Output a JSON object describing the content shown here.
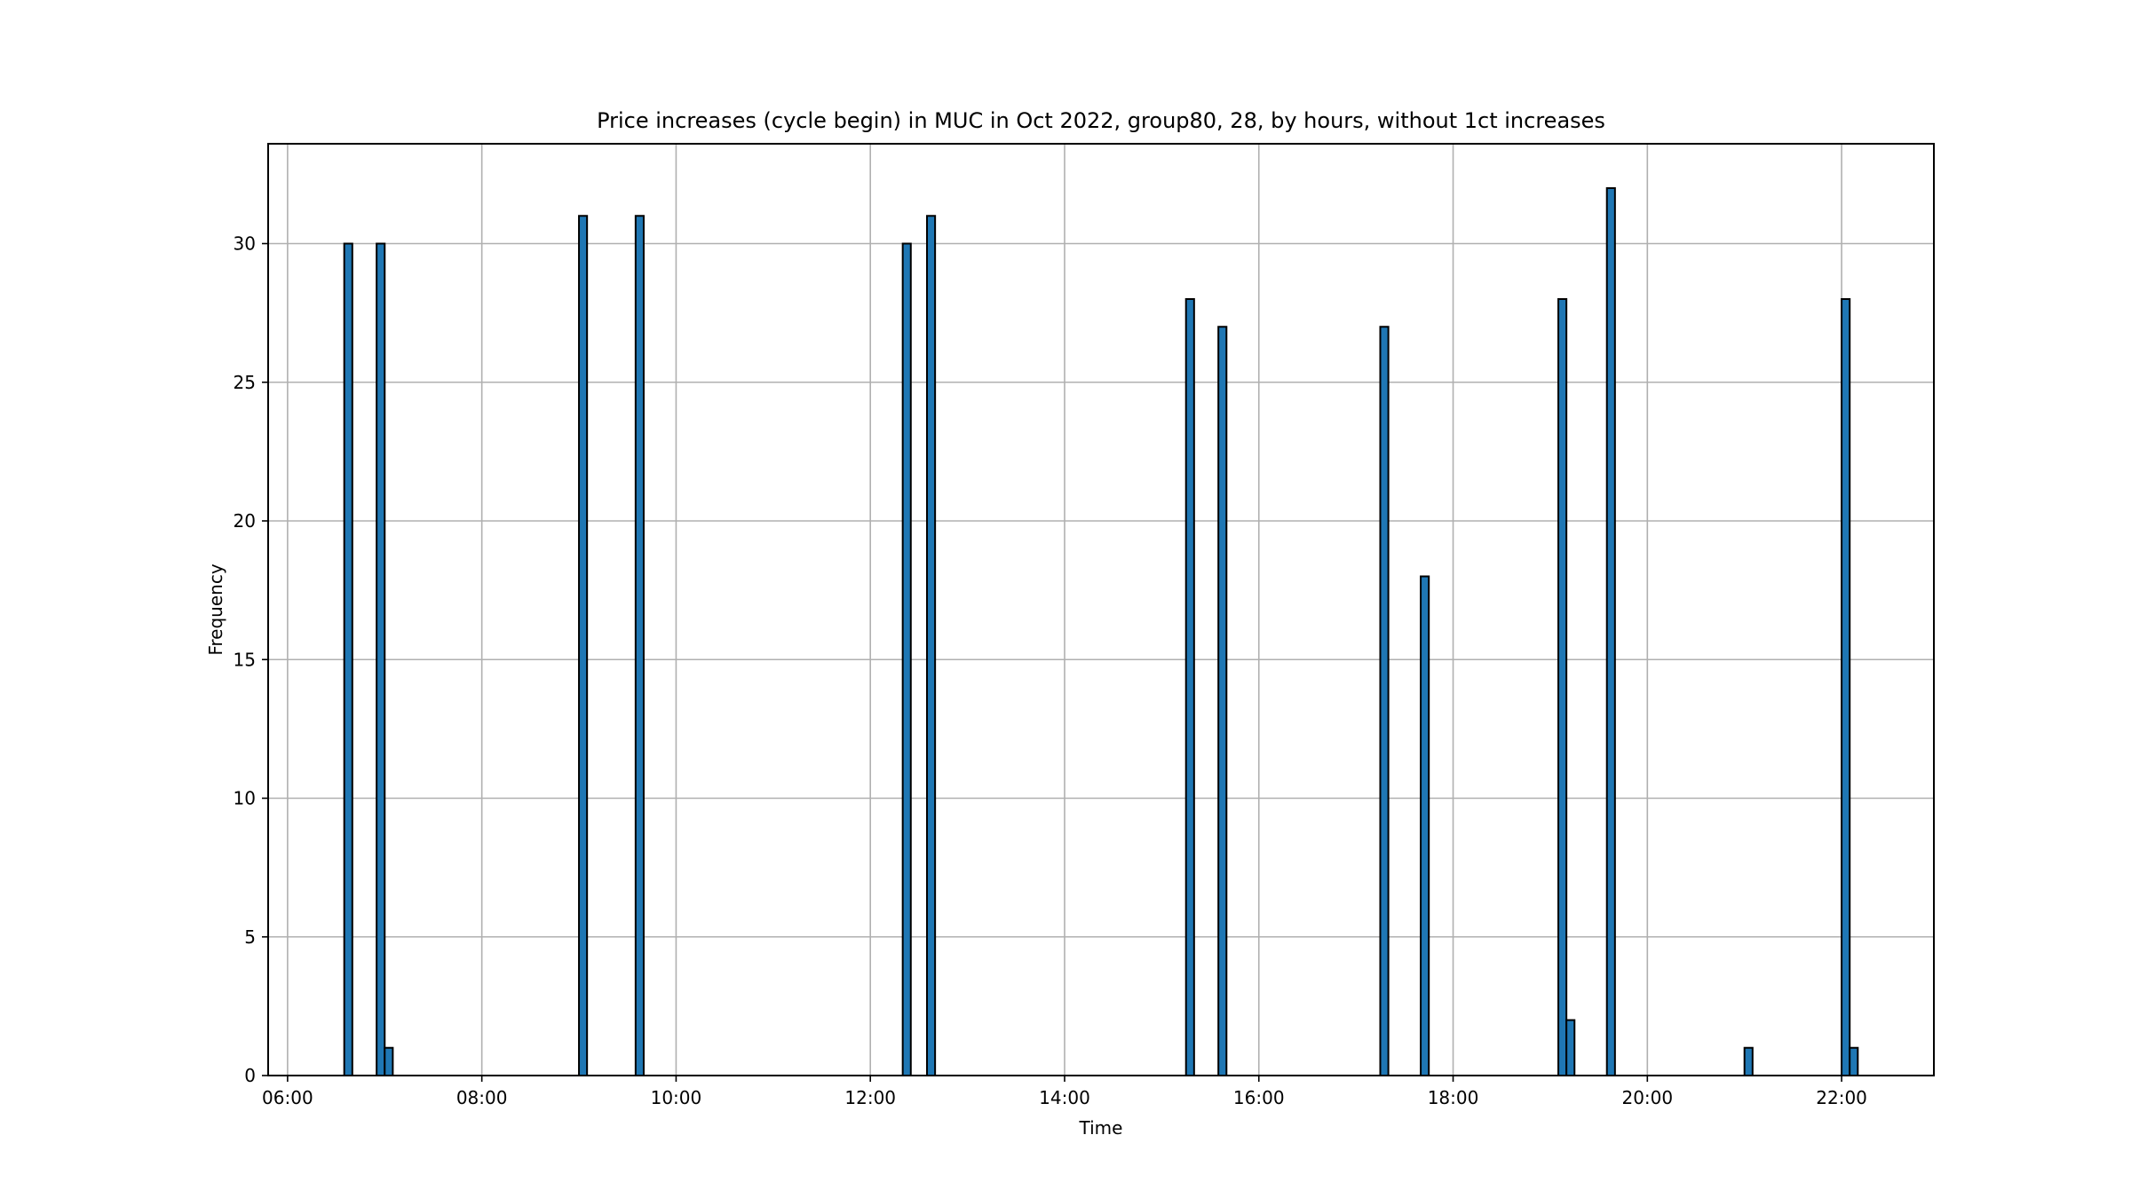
{
  "chart_data": {
    "type": "bar",
    "title": "Price increases (cycle begin) in MUC in Oct 2022, group80, 28, by hours, without 1ct increases",
    "xlabel": "Time",
    "ylabel": "Frequency",
    "x_unit": "hours of day",
    "xlim": [
      5.8,
      22.95
    ],
    "ylim": [
      0,
      33.6
    ],
    "bin_width_minutes": 5,
    "x_ticks": [
      "06:00",
      "08:00",
      "10:00",
      "12:00",
      "14:00",
      "16:00",
      "18:00",
      "20:00",
      "22:00"
    ],
    "y_ticks": [
      "0",
      "5",
      "10",
      "15",
      "20",
      "25",
      "30"
    ],
    "grid": true,
    "bar_color": "#1f77b4",
    "edge_color": "#000000",
    "bins": [
      {
        "start": "06:35",
        "value": 30
      },
      {
        "start": "06:55",
        "value": 30
      },
      {
        "start": "07:00",
        "value": 1
      },
      {
        "start": "09:00",
        "value": 31
      },
      {
        "start": "09:35",
        "value": 31
      },
      {
        "start": "12:20",
        "value": 30
      },
      {
        "start": "12:35",
        "value": 31
      },
      {
        "start": "15:15",
        "value": 28
      },
      {
        "start": "15:35",
        "value": 27
      },
      {
        "start": "17:15",
        "value": 27
      },
      {
        "start": "17:40",
        "value": 18
      },
      {
        "start": "19:05",
        "value": 28
      },
      {
        "start": "19:10",
        "value": 2
      },
      {
        "start": "19:35",
        "value": 32
      },
      {
        "start": "21:00",
        "value": 1
      },
      {
        "start": "22:00",
        "value": 28
      },
      {
        "start": "22:05",
        "value": 1
      }
    ]
  }
}
